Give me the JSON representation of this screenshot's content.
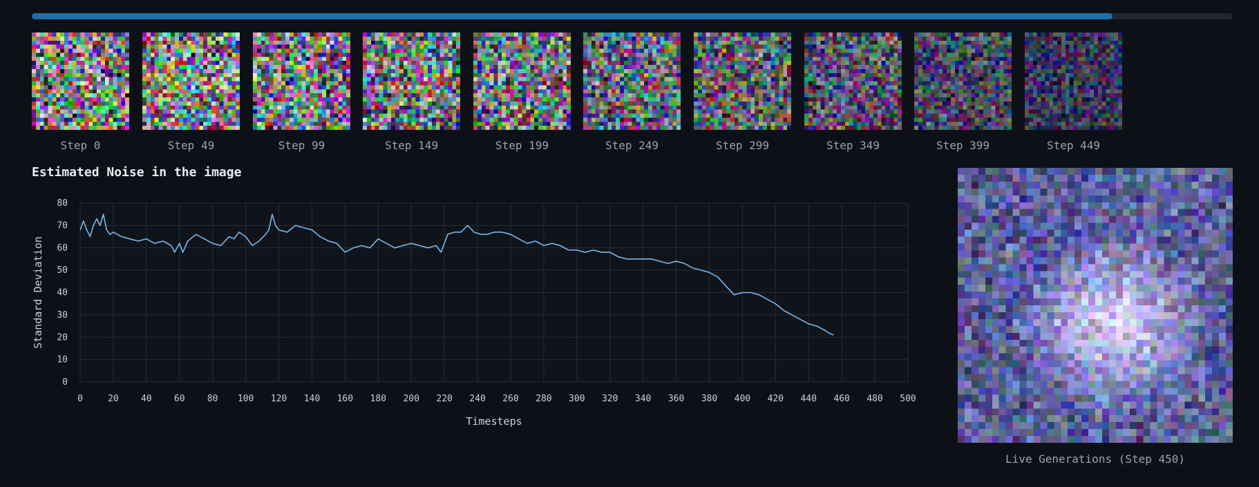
{
  "progress": {
    "fraction": 0.9
  },
  "thumbnails": [
    {
      "label": "Step 0"
    },
    {
      "label": "Step 49"
    },
    {
      "label": "Step 99"
    },
    {
      "label": "Step 149"
    },
    {
      "label": "Step 199"
    },
    {
      "label": "Step 249"
    },
    {
      "label": "Step 299"
    },
    {
      "label": "Step 349"
    },
    {
      "label": "Step 399"
    },
    {
      "label": "Step 449"
    }
  ],
  "chart_data": {
    "type": "line",
    "title": "Estimated Noise in the image",
    "xlabel": "Timesteps",
    "ylabel": "Standard Deviation",
    "xlim": [
      0,
      500
    ],
    "ylim": [
      0,
      80
    ],
    "xticks": [
      0,
      20,
      40,
      60,
      80,
      100,
      120,
      140,
      160,
      180,
      200,
      220,
      240,
      260,
      280,
      300,
      320,
      340,
      360,
      380,
      400,
      420,
      440,
      460,
      480,
      500
    ],
    "yticks": [
      0,
      10,
      20,
      30,
      40,
      50,
      60,
      70,
      80
    ],
    "grid": true,
    "line_color": "#79b8eb",
    "series": [
      {
        "x": [
          0,
          2,
          4,
          6,
          8,
          10,
          12,
          14,
          16,
          18,
          20,
          25,
          30,
          35,
          40,
          45,
          50,
          55,
          57,
          60,
          62,
          65,
          70,
          75,
          80,
          85,
          90,
          93,
          96,
          100,
          104,
          108,
          112,
          114,
          116,
          118,
          120,
          125,
          130,
          135,
          140,
          145,
          150,
          155,
          160,
          165,
          170,
          175,
          180,
          185,
          190,
          195,
          200,
          205,
          210,
          215,
          218,
          222,
          226,
          230,
          234,
          238,
          242,
          246,
          250,
          255,
          260,
          265,
          270,
          275,
          280,
          285,
          290,
          295,
          300,
          305,
          310,
          315,
          320,
          325,
          330,
          335,
          340,
          345,
          350,
          355,
          360,
          365,
          370,
          375,
          380,
          385,
          390,
          395,
          400,
          405,
          410,
          415,
          420,
          425,
          430,
          435,
          440,
          445,
          450,
          452,
          455
        ],
        "y": [
          68,
          72,
          68,
          65,
          70,
          73,
          70,
          75,
          68,
          66,
          67,
          65,
          64,
          63,
          64,
          62,
          63,
          61,
          58,
          62,
          58,
          63,
          66,
          64,
          62,
          61,
          65,
          64,
          67,
          65,
          61,
          63,
          66,
          68,
          75,
          70,
          68,
          67,
          70,
          69,
          68,
          65,
          63,
          62,
          58,
          60,
          61,
          60,
          64,
          62,
          60,
          61,
          62,
          61,
          60,
          61,
          58,
          66,
          67,
          67,
          70,
          67,
          66,
          66,
          67,
          67,
          66,
          64,
          62,
          63,
          61,
          62,
          61,
          59,
          59,
          58,
          59,
          58,
          58,
          56,
          55,
          55,
          55,
          55,
          54,
          53,
          54,
          53,
          51,
          50,
          49,
          47,
          43,
          39,
          40,
          40,
          39,
          37,
          35,
          32,
          30,
          28,
          26,
          25,
          23,
          22,
          21
        ]
      }
    ]
  },
  "live": {
    "caption": "Live Generations (Step 450)"
  }
}
